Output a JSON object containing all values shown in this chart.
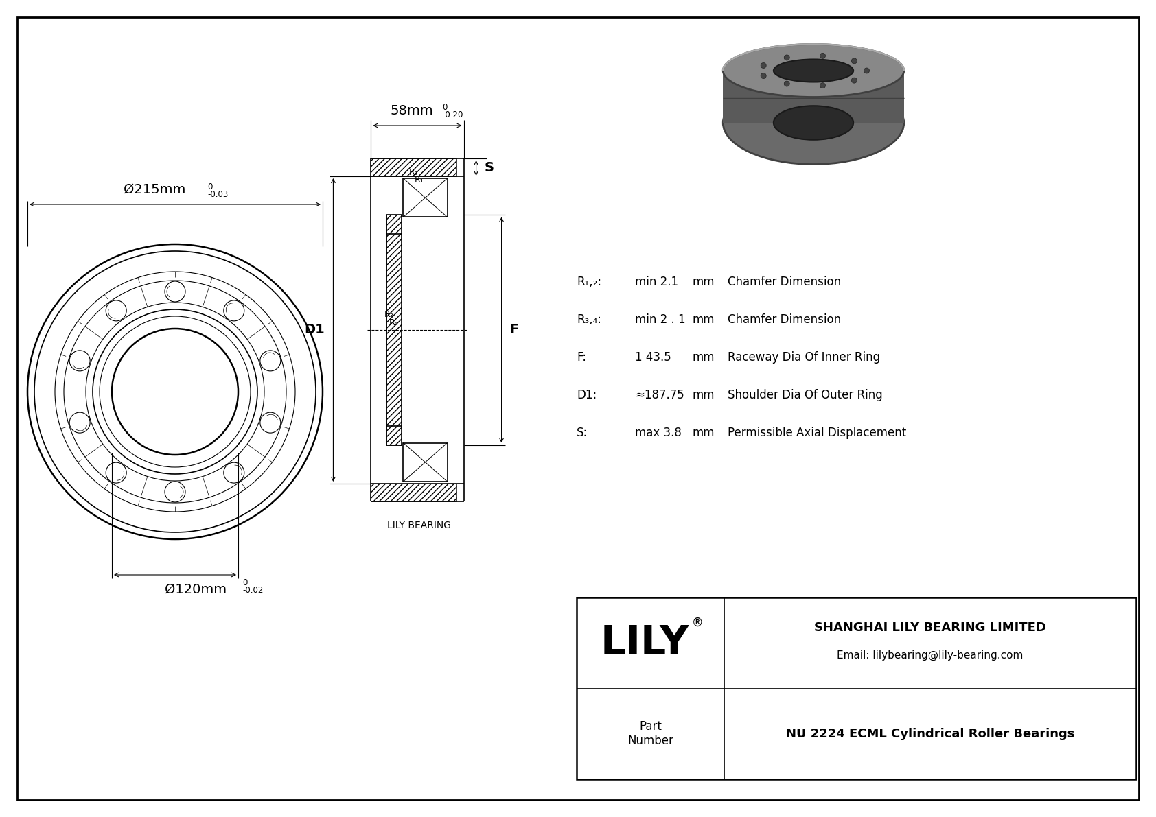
{
  "bg_color": "#ffffff",
  "line_color": "#000000",
  "title": "NU 2224 ECML Cylindrical Roller Bearings",
  "company": "SHANGHAI LILY BEARING LIMITED",
  "email": "Email: lilybearing@lily-bearing.com",
  "logo": "LILY",
  "part_label": "Part\nNumber",
  "lily_bearing_label": "LILY BEARING",
  "dim_outer": "Ø215mm",
  "dim_outer_tol_top": "0",
  "dim_outer_tol_bot": "-0.03",
  "dim_inner": "Ø120mm",
  "dim_inner_tol_top": "0",
  "dim_inner_tol_bot": "-0.02",
  "dim_width": "58mm",
  "dim_width_tol_top": "0",
  "dim_width_tol_bot": "-0.20",
  "label_S": "S",
  "label_D1": "D1",
  "label_F": "F",
  "val_R12": "min 2.1",
  "val_R34": "min 2 . 1",
  "val_F": "1 43.5",
  "val_D1": "≈187.75",
  "val_S": "max 3.8",
  "unit_mm": "mm",
  "desc_R12": "Chamfer Dimension",
  "desc_R34": "Chamfer Dimension",
  "desc_F": "Raceway Dia Of Inner Ring",
  "desc_D1": "Shoulder Dia Of Outer Ring",
  "desc_S": "Permissible Axial Displacement"
}
